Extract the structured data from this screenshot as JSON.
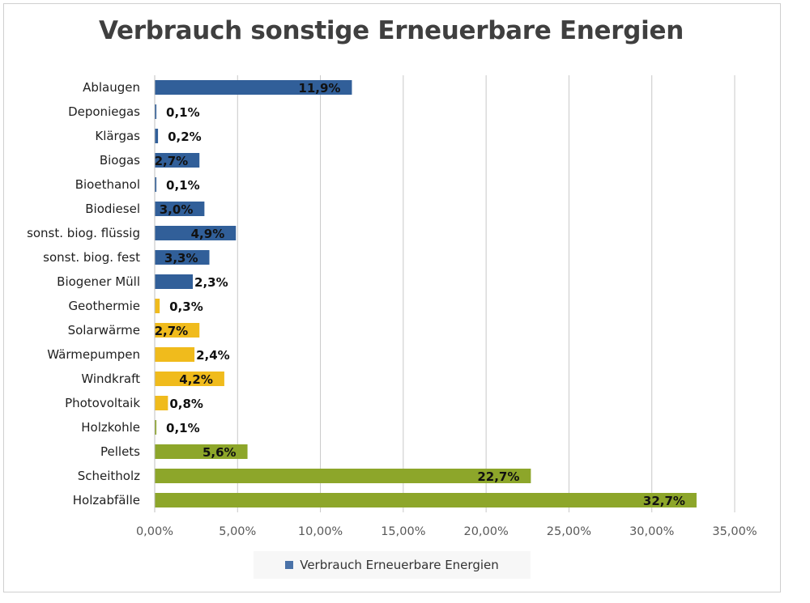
{
  "chart_data": {
    "type": "bar",
    "orientation": "horizontal",
    "title": "Verbrauch sonstige Erneuerbare Energien",
    "xlabel": "",
    "ylabel": "",
    "xlim": [
      0,
      35
    ],
    "x_ticks": [
      0,
      5,
      10,
      15,
      20,
      25,
      30,
      35
    ],
    "x_tick_labels": [
      "0,00%",
      "5,00%",
      "10,00%",
      "15,00%",
      "20,00%",
      "25,00%",
      "30,00%",
      "35,00%"
    ],
    "grid": "vertical",
    "legend_position": "bottom",
    "series": [
      {
        "name": "Verbrauch Erneuerbare Energien",
        "color": "#4a72a8"
      }
    ],
    "categories": [
      "Ablaugen",
      "Deponiegas",
      "Klärgas",
      "Biogas",
      "Bioethanol",
      "Biodiesel",
      "sonst. biog. flüssig",
      "sonst. biog. fest",
      "Biogener Müll",
      "Geothermie",
      "Solarwärme",
      "Wärmepumpen",
      "Windkraft",
      "Photovoltaik",
      "Holzkohle",
      "Pellets",
      "Scheitholz",
      "Holzabfälle"
    ],
    "values": [
      11.9,
      0.1,
      0.2,
      2.7,
      0.1,
      3.0,
      4.9,
      3.3,
      2.3,
      0.3,
      2.7,
      2.4,
      4.2,
      0.8,
      0.1,
      5.6,
      22.7,
      32.7
    ],
    "value_labels": [
      "11,9%",
      "0,1%",
      "0,2%",
      "2,7%",
      "0,1%",
      "3,0%",
      "4,9%",
      "3,3%",
      "2,3%",
      "0,3%",
      "2,7%",
      "2,4%",
      "4,2%",
      "0,8%",
      "0,1%",
      "5,6%",
      "22,7%",
      "32,7%"
    ],
    "bar_colors": [
      "#315f99",
      "#315f99",
      "#315f99",
      "#315f99",
      "#315f99",
      "#315f99",
      "#315f99",
      "#315f99",
      "#315f99",
      "#f0bb1c",
      "#f0bb1c",
      "#f0bb1c",
      "#f0bb1c",
      "#f0bb1c",
      "#8da62a",
      "#8da62a",
      "#8da62a",
      "#8da62a"
    ]
  }
}
